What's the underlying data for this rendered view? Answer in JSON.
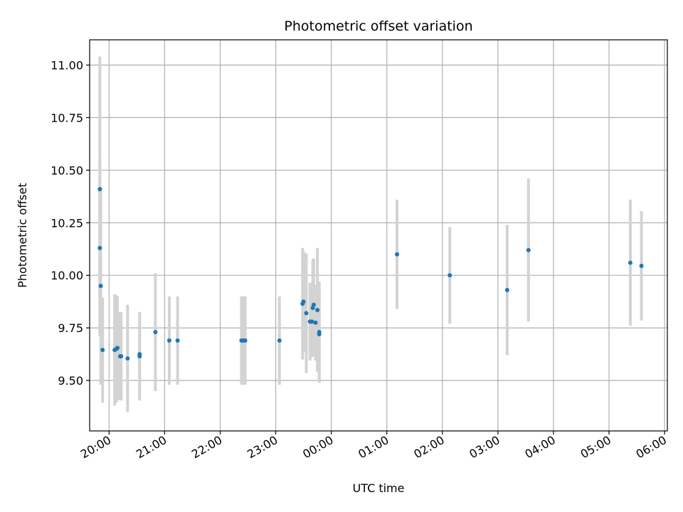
{
  "chart_data": {
    "type": "scatter",
    "title": "Photometric offset variation",
    "xlabel": "UTC time",
    "ylabel": "Photometric offset",
    "x_unit": "UTC time (HH:MM, crossing midnight)",
    "xlim": [
      "19:39",
      "06:03"
    ],
    "ylim": [
      9.26,
      11.12
    ],
    "grid": true,
    "legend": "none",
    "x_ticks": [
      "20:00",
      "21:00",
      "22:00",
      "23:00",
      "00:00",
      "01:00",
      "02:00",
      "03:00",
      "04:00",
      "05:00",
      "06:00"
    ],
    "y_ticks": [
      "9.50",
      "9.75",
      "10.00",
      "10.25",
      "10.50",
      "10.75",
      "11.00"
    ],
    "colors": {
      "point": "#1f77b4",
      "errorbar": "#d3d3d3",
      "grid": "#b0b0b0"
    },
    "points": [
      {
        "x": "19:50",
        "y": 10.41,
        "err": 0.63
      },
      {
        "x": "19:50",
        "y": 10.13,
        "err": 0.42
      },
      {
        "x": "19:51",
        "y": 9.95,
        "err": 0.47
      },
      {
        "x": "19:53",
        "y": 9.645,
        "err": 0.25
      },
      {
        "x": "20:06",
        "y": 9.645,
        "err": 0.265
      },
      {
        "x": "20:08",
        "y": 9.65,
        "err": 0.255
      },
      {
        "x": "20:09",
        "y": 9.655,
        "err": 0.245
      },
      {
        "x": "20:12",
        "y": 9.615,
        "err": 0.21
      },
      {
        "x": "20:13",
        "y": 9.615,
        "err": 0.21
      },
      {
        "x": "20:20",
        "y": 9.605,
        "err": 0.255
      },
      {
        "x": "20:33",
        "y": 9.625,
        "err": 0.2
      },
      {
        "x": "20:33",
        "y": 9.615,
        "err": 0.21
      },
      {
        "x": "20:50",
        "y": 9.73,
        "err": 0.28
      },
      {
        "x": "21:05",
        "y": 9.69,
        "err": 0.21
      },
      {
        "x": "21:14",
        "y": 9.69,
        "err": 0.21
      },
      {
        "x": "22:23",
        "y": 9.69,
        "err": 0.21
      },
      {
        "x": "22:25",
        "y": 9.69,
        "err": 0.21
      },
      {
        "x": "22:27",
        "y": 9.69,
        "err": 0.21
      },
      {
        "x": "23:04",
        "y": 9.69,
        "err": 0.21
      },
      {
        "x": "23:29",
        "y": 9.865,
        "err": 0.265
      },
      {
        "x": "23:30",
        "y": 9.875,
        "err": 0.24
      },
      {
        "x": "23:33",
        "y": 9.82,
        "err": 0.285
      },
      {
        "x": "23:37",
        "y": 9.78,
        "err": 0.185
      },
      {
        "x": "23:39",
        "y": 9.78,
        "err": 0.17
      },
      {
        "x": "23:40",
        "y": 9.845,
        "err": 0.23
      },
      {
        "x": "23:41",
        "y": 9.86,
        "err": 0.22
      },
      {
        "x": "23:43",
        "y": 9.775,
        "err": 0.18
      },
      {
        "x": "23:45",
        "y": 9.835,
        "err": 0.295
      },
      {
        "x": "23:47",
        "y": 9.72,
        "err": 0.23
      },
      {
        "x": "23:47",
        "y": 9.73,
        "err": 0.24
      },
      {
        "x": "01:11",
        "y": 10.1,
        "err": 0.26
      },
      {
        "x": "02:08",
        "y": 10.0,
        "err": 0.23
      },
      {
        "x": "03:10",
        "y": 9.93,
        "err": 0.31
      },
      {
        "x": "03:33",
        "y": 10.12,
        "err": 0.34
      },
      {
        "x": "05:23",
        "y": 10.06,
        "err": 0.3
      },
      {
        "x": "05:35",
        "y": 10.045,
        "err": 0.26
      }
    ]
  }
}
